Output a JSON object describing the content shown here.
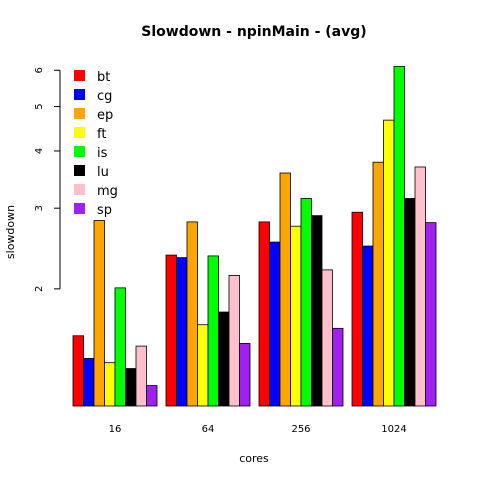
{
  "chart_data": {
    "type": "bar",
    "title": "Slowdown - npinMain - (avg)",
    "xlabel": "cores",
    "ylabel": "slowdown",
    "log_y": true,
    "ylim": [
      1.11,
      6.35
    ],
    "yticks": [
      2,
      3,
      4,
      5,
      6
    ],
    "categories": [
      "16",
      "64",
      "256",
      "1024"
    ],
    "series": [
      {
        "name": "bt",
        "color": "#FF0000",
        "values": [
          1.58,
          2.37,
          2.8,
          2.94
        ]
      },
      {
        "name": "cg",
        "color": "#0000FF",
        "values": [
          1.41,
          2.34,
          2.53,
          2.48
        ]
      },
      {
        "name": "ep",
        "color": "#FFA500",
        "values": [
          2.82,
          2.8,
          3.58,
          3.78
        ]
      },
      {
        "name": "ft",
        "color": "#FFFF00",
        "values": [
          1.38,
          1.67,
          2.74,
          4.67
        ]
      },
      {
        "name": "is",
        "color": "#00FF00",
        "values": [
          2.01,
          2.36,
          3.15,
          6.12
        ]
      },
      {
        "name": "lu",
        "color": "#000000",
        "values": [
          1.34,
          1.78,
          2.89,
          3.15
        ]
      },
      {
        "name": "mg",
        "color": "#FFC0CB",
        "values": [
          1.5,
          2.14,
          2.2,
          3.69
        ]
      },
      {
        "name": "sp",
        "color": "#A020F0",
        "values": [
          1.23,
          1.52,
          1.64,
          2.79
        ]
      }
    ],
    "legend_position": "top-left",
    "grid": false
  }
}
